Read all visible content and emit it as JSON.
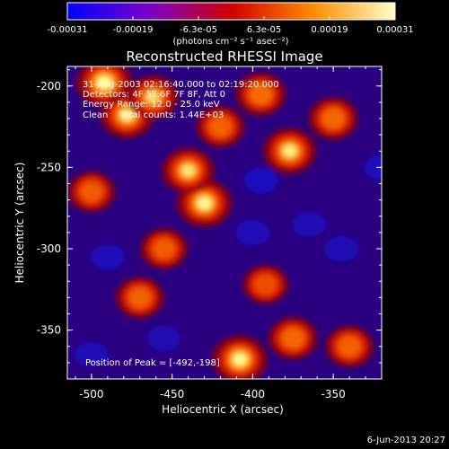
{
  "chart_data": {
    "type": "heatmap",
    "title": "Reconstructed RHESSI Image",
    "xlabel": "Heliocentric X (arcsec)",
    "ylabel": "Heliocentric Y (arcsec)",
    "xlim": [
      -515,
      -320
    ],
    "ylim": [
      -380,
      -188
    ],
    "x_ticks": [
      -500,
      -450,
      -400,
      -350
    ],
    "y_ticks": [
      -200,
      -250,
      -300,
      -350
    ],
    "colorbar": {
      "ticks": [
        "-0.00031",
        "-0.00019",
        "-6.3e-05",
        "6.3e-05",
        "0.00019",
        "0.00031"
      ],
      "range": [
        -0.00031,
        0.00031
      ],
      "unit_label": "(photons cm⁻² s⁻¹ asec⁻²)",
      "colors": [
        "#0000ff",
        "#7a00c8",
        "#d00000",
        "#ff8c00",
        "#ffffc8"
      ]
    },
    "annotations": [
      "31-Aug-2003 02:16:40.000 to 02:19:20.000",
      "Detectors: 4F 5F 6F 7F 8F, Att 0",
      "Energy Range: 12.0 - 25.0 keV",
      "Clean    Total counts: 1.44E+03"
    ],
    "peak_label": "Position of Peak = [-492,-198]",
    "peak_position": [
      -492,
      -198
    ],
    "bright_sources": [
      {
        "x": -492,
        "y": -198,
        "level": 1.0
      },
      {
        "x": -478,
        "y": -218,
        "level": 0.85
      },
      {
        "x": -462,
        "y": -207,
        "level": 0.75
      },
      {
        "x": -430,
        "y": -272,
        "level": 0.95
      },
      {
        "x": -440,
        "y": -252,
        "level": 0.8
      },
      {
        "x": -408,
        "y": -368,
        "level": 0.95
      },
      {
        "x": -377,
        "y": -240,
        "level": 0.85
      },
      {
        "x": -395,
        "y": -205,
        "level": 0.7
      },
      {
        "x": -350,
        "y": -220,
        "level": 0.65
      },
      {
        "x": -470,
        "y": -330,
        "level": 0.6
      },
      {
        "x": -375,
        "y": -355,
        "level": 0.65
      },
      {
        "x": -340,
        "y": -360,
        "level": 0.6
      },
      {
        "x": -455,
        "y": -300,
        "level": 0.55
      },
      {
        "x": -500,
        "y": -265,
        "level": 0.55
      },
      {
        "x": -392,
        "y": -322,
        "level": 0.45
      },
      {
        "x": -420,
        "y": -225,
        "level": 0.6
      }
    ],
    "dim_regions": [
      {
        "x": -395,
        "y": -258,
        "level": -0.9
      },
      {
        "x": -320,
        "y": -250,
        "level": -0.8
      },
      {
        "x": -490,
        "y": -305,
        "level": -0.75
      },
      {
        "x": -400,
        "y": -290,
        "level": -0.7
      },
      {
        "x": -345,
        "y": -300,
        "level": -0.65
      },
      {
        "x": -500,
        "y": -365,
        "level": -0.6
      },
      {
        "x": -455,
        "y": -355,
        "level": -0.55
      },
      {
        "x": -365,
        "y": -285,
        "level": -0.6
      }
    ]
  },
  "footer": {
    "date": "6-Jun-2013 20:27"
  }
}
